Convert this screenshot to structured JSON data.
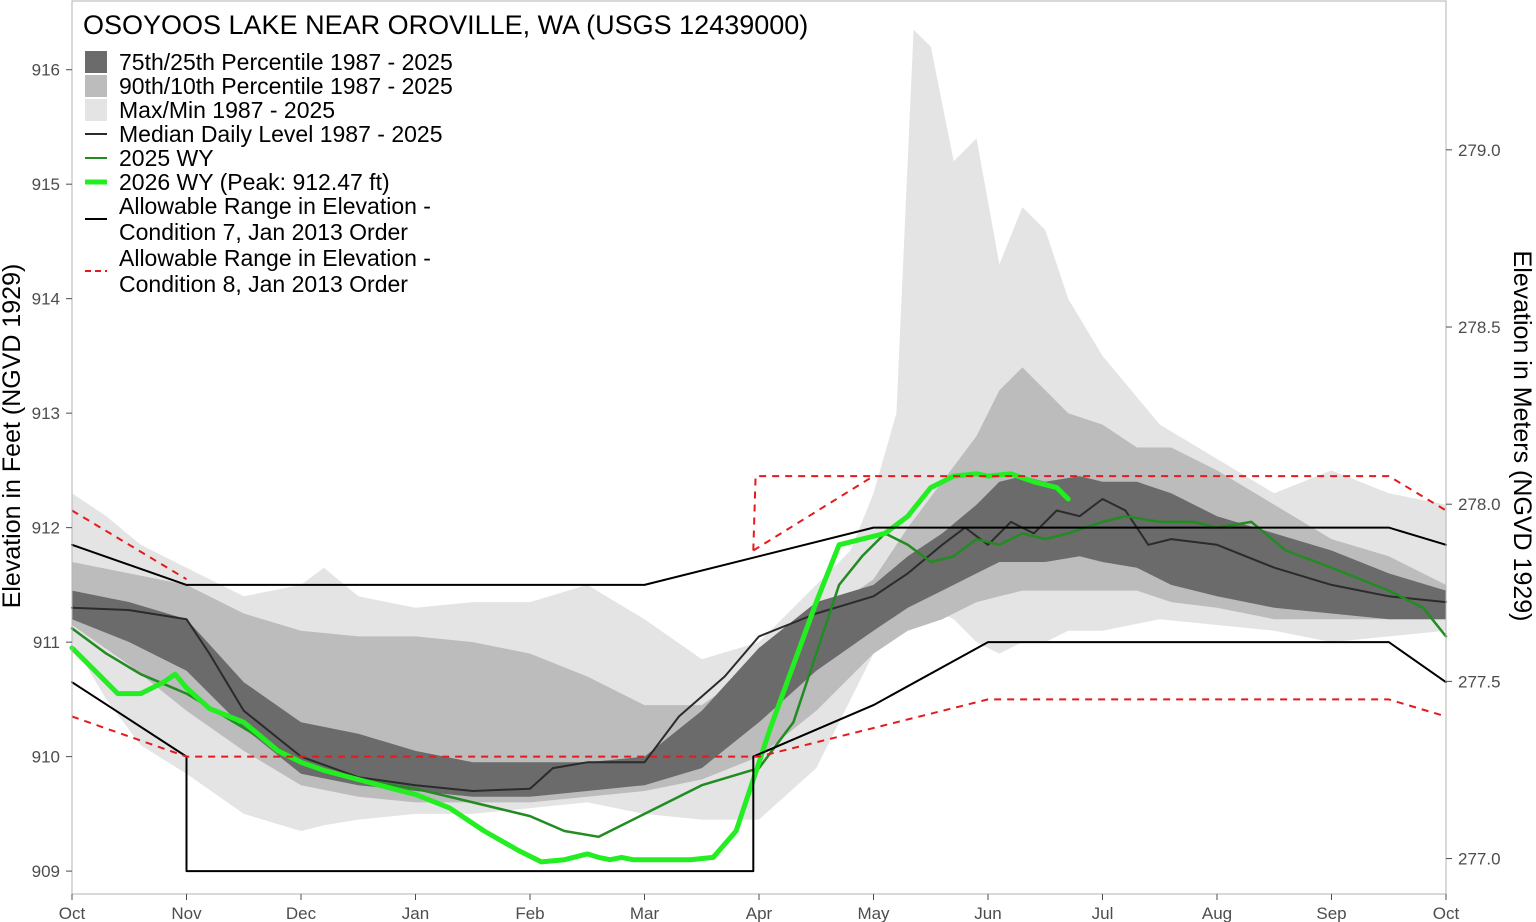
{
  "chart_data": {
    "type": "area",
    "title": "OSOYOOS LAKE NEAR OROVILLE, WA (USGS 12439000)",
    "ylabel": "Elevation in Feet (NGVD 1929)",
    "y2label": "Elevation in Meters (NGVD 1929)",
    "xlabel": "",
    "x_unit": "month",
    "xlim": [
      0,
      12
    ],
    "ylim": [
      908.8,
      916.6
    ],
    "y2lim": [
      276.9,
      279.42
    ],
    "x_tick_positions": [
      0,
      1,
      2,
      3,
      4,
      5,
      6,
      7,
      8,
      9,
      10,
      11,
      12
    ],
    "x_tick_labels": [
      "Oct",
      "Nov",
      "Dec",
      "Jan",
      "Feb",
      "Mar",
      "Apr",
      "May",
      "Jun",
      "Jul",
      "Aug",
      "Sep",
      "Oct"
    ],
    "y_ticks": [
      909,
      910,
      911,
      912,
      913,
      914,
      915,
      916
    ],
    "y2_ticks": [
      "277.0",
      "277.5",
      "278.0",
      "278.5",
      "279.0"
    ],
    "grid": false,
    "legend_position": "top-left",
    "legend": [
      {
        "label": "75th/25th Percentile 1987 - 2025",
        "kind": "box",
        "color": "#6b6b6b"
      },
      {
        "label": "90th/10th Percentile 1987 - 2025",
        "kind": "box",
        "color": "#bcbcbc"
      },
      {
        "label": "Max/Min 1987 - 2025",
        "kind": "box",
        "color": "#e4e4e4"
      },
      {
        "label": "Median Daily Level 1987 - 2025",
        "kind": "line",
        "color": "#2b2b2b"
      },
      {
        "label": "2025  WY",
        "kind": "line",
        "color": "#228b22"
      },
      {
        "label": "2026 WY (Peak: 912.47 ft)",
        "kind": "line",
        "color": "#22ee22"
      },
      {
        "label": [
          "Allowable Range in Elevation -",
          "Condition 7, Jan 2013 Order"
        ],
        "kind": "line",
        "color": "#000000"
      },
      {
        "label": [
          "Allowable Range in Elevation -",
          "Condition 8, Jan 2013 Order"
        ],
        "kind": "dash",
        "color": "#e41a1c"
      }
    ],
    "bands": [
      {
        "name": "Max/Min 1987 - 2025",
        "color": "#e4e4e4",
        "x": [
          0,
          0.3,
          0.6,
          1,
          1.5,
          2,
          2.2,
          2.5,
          3,
          3.5,
          4,
          4.5,
          5,
          5.5,
          6,
          6.5,
          6.8,
          7,
          7.2,
          7.35,
          7.5,
          7.7,
          7.9,
          8.1,
          8.3,
          8.5,
          8.7,
          9,
          9.5,
          10,
          10.5,
          11,
          11.5,
          12
        ],
        "upper": [
          912.3,
          912.1,
          911.85,
          911.65,
          911.4,
          911.5,
          911.65,
          911.4,
          911.3,
          911.35,
          911.35,
          911.5,
          911.2,
          910.85,
          911.0,
          911.5,
          911.8,
          912.3,
          913.0,
          916.35,
          916.2,
          915.2,
          915.4,
          914.3,
          914.8,
          914.6,
          914.0,
          913.5,
          912.9,
          912.6,
          912.3,
          912.5,
          912.3,
          912.2
        ],
        "lower": [
          911.0,
          910.5,
          910.1,
          909.85,
          909.5,
          909.35,
          909.4,
          909.45,
          909.5,
          909.5,
          909.55,
          909.6,
          909.5,
          909.45,
          909.45,
          909.9,
          910.5,
          910.9,
          911.15,
          911.25,
          911.3,
          911.2,
          911.0,
          910.9,
          911.0,
          911.0,
          911.1,
          911.1,
          911.2,
          911.15,
          911.1,
          911.0,
          911.05,
          911.1
        ]
      },
      {
        "name": "90th/10th Percentile 1987 - 2025",
        "color": "#bcbcbc",
        "x": [
          0,
          0.5,
          1,
          1.5,
          2,
          2.5,
          3,
          3.5,
          4,
          4.5,
          5,
          5.5,
          6,
          6.5,
          7,
          7.3,
          7.6,
          7.9,
          8.1,
          8.3,
          8.5,
          8.7,
          9,
          9.3,
          9.6,
          10,
          10.5,
          11,
          11.5,
          12
        ],
        "upper": [
          911.7,
          911.6,
          911.5,
          911.25,
          911.1,
          911.05,
          911.05,
          911.0,
          910.9,
          910.7,
          910.45,
          910.45,
          910.8,
          911.2,
          911.55,
          912.0,
          912.4,
          912.8,
          913.2,
          913.4,
          913.2,
          913.0,
          912.9,
          912.7,
          912.7,
          912.5,
          912.2,
          911.9,
          911.75,
          911.5
        ],
        "lower": [
          911.15,
          910.8,
          910.4,
          910.05,
          909.75,
          909.65,
          909.6,
          909.6,
          909.6,
          909.65,
          909.7,
          909.8,
          910.0,
          910.4,
          910.9,
          911.1,
          911.2,
          911.35,
          911.4,
          911.45,
          911.45,
          911.45,
          911.45,
          911.45,
          911.35,
          911.3,
          911.2,
          911.2,
          911.2,
          911.2
        ]
      },
      {
        "name": "75th/25th Percentile 1987 - 2025",
        "color": "#6b6b6b",
        "x": [
          0,
          0.5,
          1,
          1.5,
          2,
          2.5,
          3,
          3.5,
          4,
          4.5,
          5,
          5.5,
          6,
          6.5,
          7,
          7.3,
          7.6,
          7.9,
          8.1,
          8.3,
          8.5,
          8.8,
          9,
          9.3,
          9.6,
          10,
          10.5,
          11,
          11.5,
          12
        ],
        "upper": [
          911.45,
          911.35,
          911.2,
          910.65,
          910.3,
          910.2,
          910.05,
          909.95,
          909.95,
          909.95,
          910.0,
          910.4,
          910.95,
          911.35,
          911.5,
          911.75,
          911.95,
          912.2,
          912.4,
          912.45,
          912.4,
          912.45,
          912.4,
          912.4,
          912.3,
          912.1,
          911.95,
          911.8,
          911.6,
          911.45
        ],
        "lower": [
          911.2,
          911.0,
          910.75,
          910.25,
          909.85,
          909.75,
          909.7,
          909.65,
          909.65,
          909.7,
          909.75,
          909.9,
          910.3,
          910.75,
          911.1,
          911.3,
          911.45,
          911.6,
          911.7,
          911.7,
          911.7,
          911.75,
          911.7,
          911.65,
          911.5,
          911.4,
          911.3,
          911.25,
          911.2,
          911.2
        ]
      }
    ],
    "series": [
      {
        "name": "Median Daily Level 1987 - 2025",
        "color": "#2b2b2b",
        "width": 2,
        "dash": "",
        "x": [
          0,
          0.5,
          1,
          1.2,
          1.5,
          2,
          2.5,
          3,
          3.5,
          4,
          4.2,
          4.5,
          5,
          5.3,
          5.7,
          6,
          6.5,
          7,
          7.3,
          7.6,
          7.8,
          8.0,
          8.2,
          8.4,
          8.6,
          8.8,
          9,
          9.2,
          9.4,
          9.6,
          10,
          10.5,
          11,
          11.5,
          12
        ],
        "y": [
          911.3,
          911.28,
          911.2,
          910.9,
          910.4,
          910.0,
          909.82,
          909.75,
          909.7,
          909.72,
          909.9,
          909.95,
          909.95,
          910.35,
          910.7,
          911.05,
          911.25,
          911.4,
          911.6,
          911.85,
          912.0,
          911.85,
          912.05,
          911.95,
          912.15,
          912.1,
          912.25,
          912.15,
          911.85,
          911.9,
          911.85,
          911.65,
          911.5,
          911.4,
          911.35
        ]
      },
      {
        "name": "2025  WY",
        "color": "#228b22",
        "width": 2.5,
        "dash": "",
        "x": [
          0,
          0.3,
          0.6,
          1,
          1.5,
          2,
          2.5,
          3,
          3.5,
          4,
          4.3,
          4.6,
          5,
          5.5,
          6,
          6.3,
          6.5,
          6.7,
          6.9,
          7.1,
          7.3,
          7.5,
          7.7,
          7.9,
          8.1,
          8.3,
          8.5,
          8.7,
          9,
          9.2,
          9.5,
          9.8,
          10,
          10.3,
          10.6,
          11,
          11.5,
          11.8,
          12
        ],
        "y": [
          911.12,
          910.9,
          910.72,
          910.55,
          910.25,
          909.95,
          909.8,
          909.72,
          909.6,
          909.48,
          909.35,
          909.3,
          909.5,
          909.75,
          909.9,
          910.3,
          910.9,
          911.5,
          911.75,
          911.95,
          911.85,
          911.7,
          911.75,
          911.9,
          911.85,
          911.95,
          911.9,
          911.95,
          912.05,
          912.1,
          912.05,
          912.05,
          912.0,
          912.05,
          911.8,
          911.65,
          911.45,
          911.3,
          911.05
        ]
      },
      {
        "name": "2026 WY (Peak: 912.47 ft)",
        "color": "#22ee22",
        "width": 5,
        "dash": "",
        "x": [
          0,
          0.2,
          0.4,
          0.6,
          0.8,
          0.9,
          1.0,
          1.2,
          1.5,
          1.8,
          2.0,
          2.2,
          2.5,
          2.8,
          3.0,
          3.3,
          3.6,
          3.9,
          4.1,
          4.3,
          4.5,
          4.6,
          4.7,
          4.8,
          4.9,
          5.0,
          5.2,
          5.4,
          5.6,
          5.8,
          5.95,
          6.1,
          6.3,
          6.5,
          6.7,
          6.9,
          7.1,
          7.3,
          7.5,
          7.7,
          7.9,
          8.0,
          8.2,
          8.4,
          8.6,
          8.7
        ],
        "y": [
          910.95,
          910.75,
          910.55,
          910.55,
          910.65,
          910.72,
          910.6,
          910.42,
          910.3,
          910.05,
          909.95,
          909.88,
          909.8,
          909.72,
          909.67,
          909.55,
          909.35,
          909.18,
          909.08,
          909.1,
          909.15,
          909.12,
          909.1,
          909.12,
          909.1,
          909.1,
          909.1,
          909.1,
          909.12,
          909.35,
          909.8,
          910.25,
          910.8,
          911.35,
          911.85,
          911.9,
          911.95,
          912.1,
          912.35,
          912.45,
          912.47,
          912.45,
          912.47,
          912.4,
          912.35,
          912.25
        ]
      },
      {
        "name": "Condition 7 upper",
        "color": "#000000",
        "width": 2,
        "dash": "",
        "x": [
          0,
          1,
          5,
          7,
          11.5,
          12
        ],
        "y": [
          911.85,
          911.5,
          911.5,
          912.0,
          912.0,
          911.85
        ]
      },
      {
        "name": "Condition 7 lower",
        "color": "#000000",
        "width": 2,
        "dash": "",
        "x": [
          0,
          1,
          1.0,
          5.95,
          5.95,
          7,
          8,
          11.5,
          12
        ],
        "y": [
          910.65,
          910.0,
          909.0,
          909.0,
          910.0,
          910.45,
          911.0,
          911.0,
          910.65
        ]
      },
      {
        "name": "Condition 8 upper",
        "color": "#e41a1c",
        "width": 2,
        "dash": "7,6",
        "x": [
          0,
          1,
          5.95,
          5.95,
          7,
          11.5,
          12
        ],
        "y": [
          912.15,
          911.55,
          null,
          911.8,
          912.45,
          912.45,
          912.15
        ]
      },
      {
        "name": "Condition 8 upper jump",
        "color": "#e41a1c",
        "width": 2,
        "dash": "7,6",
        "x": [
          5.95,
          5.97,
          6.5,
          7
        ],
        "y": [
          911.8,
          912.45,
          912.45,
          912.45
        ]
      },
      {
        "name": "Condition 8 lower",
        "color": "#e41a1c",
        "width": 2,
        "dash": "7,6",
        "x": [
          0,
          1,
          6,
          8,
          11.5,
          12
        ],
        "y": [
          910.35,
          910.0,
          910.0,
          910.5,
          910.5,
          910.35
        ]
      }
    ]
  }
}
